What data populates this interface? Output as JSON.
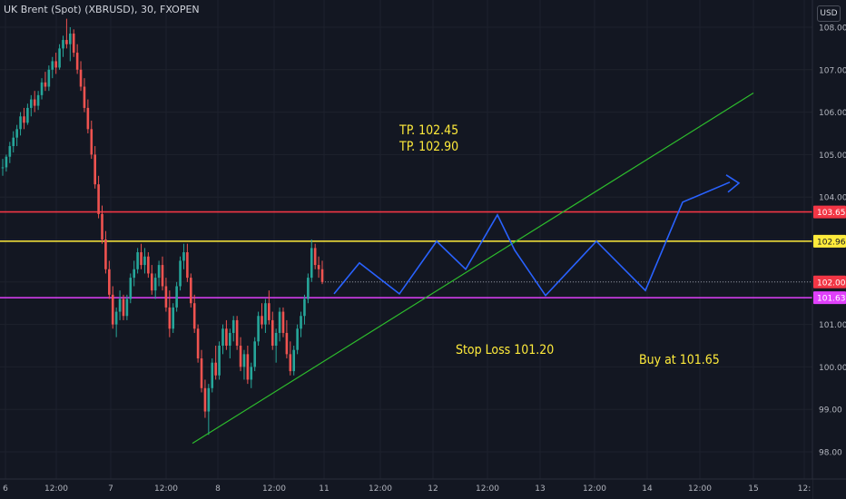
{
  "header": {
    "title": "UK Brent (Spot) (XBRUSD), 30, FXOPEN",
    "currency": "USD"
  },
  "colors": {
    "background": "#131722",
    "up": "#26a69a",
    "down": "#ef5350",
    "resistance": "#f23645",
    "yellow_line": "#ffeb3b",
    "support": "#e040fb",
    "trend": "#2dbd2d",
    "path": "#2962ff",
    "text_annotation": "#ffeb3b"
  },
  "annotations": {
    "tp1": "TP. 102.45",
    "tp2": "TP. 102.90",
    "stop_loss": "Stop Loss 101.20",
    "buy": "Buy at 101.65"
  },
  "chart_data": {
    "type": "candlestick",
    "y_axis": {
      "ticks": [
        "108.00",
        "107.00",
        "106.00",
        "105.00",
        "104.00",
        "103.00",
        "102.00",
        "101.00",
        "100.00",
        "99.00",
        "98.00"
      ],
      "tick_values": [
        108,
        107,
        106,
        105,
        104,
        103,
        102,
        101,
        100,
        99,
        98
      ],
      "range": [
        97.8,
        108.4
      ]
    },
    "x_axis": {
      "ticks": [
        "6",
        "12:00",
        "7",
        "12:00",
        "8",
        "12:00",
        "11",
        "12:00",
        "12",
        "12:00",
        "13",
        "12:00",
        "14",
        "12:00",
        "15",
        "12:"
      ]
    },
    "price_labels": [
      {
        "text": "103.65",
        "value": 103.65,
        "color": "#f23645"
      },
      {
        "text": "102.96",
        "value": 102.96,
        "color": "#ffeb3b"
      },
      {
        "text": "102.00",
        "value": 102.0,
        "color": "#f23645"
      },
      {
        "text": "101.63",
        "value": 101.63,
        "color": "#e040fb"
      }
    ],
    "horizontal_lines": [
      {
        "name": "resistance",
        "value": 103.65
      },
      {
        "name": "yellow-level",
        "value": 102.96
      },
      {
        "name": "support",
        "value": 101.63
      },
      {
        "name": "last-price",
        "value": 102.0
      }
    ],
    "trendline": {
      "from": {
        "bar": "8 (early)",
        "price": 98.2
      },
      "to": {
        "bar": "15 (late)",
        "price": 106.45
      }
    },
    "projected_path": [
      101.72,
      102.45,
      101.72,
      102.96,
      102.3,
      103.58,
      102.75,
      101.68,
      102.96,
      101.8,
      103.88,
      104.35
    ],
    "candles_ohlc": [
      [
        104.7,
        104.9,
        104.5,
        104.7
      ],
      [
        104.7,
        105.0,
        104.6,
        104.95
      ],
      [
        104.95,
        105.3,
        104.8,
        105.2
      ],
      [
        105.2,
        105.55,
        105.05,
        105.4
      ],
      [
        105.4,
        105.7,
        105.2,
        105.6
      ],
      [
        105.6,
        106.0,
        105.45,
        105.9
      ],
      [
        105.9,
        106.1,
        105.6,
        105.75
      ],
      [
        105.75,
        106.2,
        105.7,
        106.1
      ],
      [
        106.1,
        106.4,
        105.9,
        106.3
      ],
      [
        106.3,
        106.5,
        106.0,
        106.15
      ],
      [
        106.15,
        106.5,
        106.05,
        106.4
      ],
      [
        106.4,
        106.8,
        106.3,
        106.7
      ],
      [
        106.7,
        106.95,
        106.5,
        106.6
      ],
      [
        106.6,
        107.1,
        106.5,
        107.0
      ],
      [
        107.0,
        107.3,
        106.8,
        107.2
      ],
      [
        107.2,
        107.4,
        106.9,
        107.05
      ],
      [
        107.05,
        107.6,
        107.0,
        107.5
      ],
      [
        107.5,
        107.8,
        107.3,
        107.7
      ],
      [
        107.7,
        108.2,
        107.5,
        107.6
      ],
      [
        107.6,
        108.0,
        107.2,
        107.85
      ],
      [
        107.85,
        107.95,
        107.3,
        107.4
      ],
      [
        107.4,
        107.6,
        106.9,
        107.0
      ],
      [
        107.0,
        107.2,
        106.5,
        106.6
      ],
      [
        106.6,
        106.8,
        106.0,
        106.1
      ],
      [
        106.1,
        106.3,
        105.5,
        105.6
      ],
      [
        105.6,
        105.8,
        104.9,
        105.0
      ],
      [
        105.0,
        105.2,
        104.2,
        104.3
      ],
      [
        104.3,
        104.5,
        103.5,
        103.6
      ],
      [
        103.6,
        103.8,
        102.9,
        103.0
      ],
      [
        103.0,
        103.2,
        102.2,
        102.3
      ],
      [
        102.3,
        102.5,
        101.6,
        101.7
      ],
      [
        101.7,
        101.9,
        100.9,
        101.0
      ],
      [
        101.0,
        101.4,
        100.7,
        101.3
      ],
      [
        101.3,
        101.8,
        101.1,
        101.6
      ],
      [
        101.6,
        101.7,
        101.1,
        101.2
      ],
      [
        101.2,
        101.7,
        101.1,
        101.6
      ],
      [
        101.6,
        102.2,
        101.5,
        102.1
      ],
      [
        102.1,
        102.5,
        101.9,
        102.3
      ],
      [
        102.3,
        102.8,
        102.2,
        102.7
      ],
      [
        102.7,
        102.9,
        102.3,
        102.4
      ],
      [
        102.4,
        102.8,
        102.2,
        102.6
      ],
      [
        102.6,
        102.7,
        102.1,
        102.2
      ],
      [
        102.2,
        102.4,
        101.7,
        101.8
      ],
      [
        101.8,
        102.2,
        101.6,
        102.1
      ],
      [
        102.1,
        102.5,
        101.9,
        102.4
      ],
      [
        102.4,
        102.6,
        101.8,
        101.9
      ],
      [
        101.9,
        102.1,
        101.3,
        101.4
      ],
      [
        101.4,
        101.8,
        100.7,
        100.9
      ],
      [
        100.9,
        101.5,
        100.8,
        101.4
      ],
      [
        101.4,
        102.0,
        101.3,
        101.9
      ],
      [
        101.9,
        102.6,
        101.8,
        102.5
      ],
      [
        102.5,
        102.9,
        102.3,
        102.7
      ],
      [
        102.7,
        102.9,
        102.0,
        102.1
      ],
      [
        102.1,
        102.2,
        101.4,
        101.5
      ],
      [
        101.5,
        101.7,
        100.8,
        100.9
      ],
      [
        100.9,
        101.0,
        100.1,
        100.2
      ],
      [
        100.2,
        100.4,
        99.4,
        99.5
      ],
      [
        99.5,
        99.7,
        98.8,
        98.95
      ],
      [
        98.95,
        99.6,
        98.4,
        99.5
      ],
      [
        99.5,
        100.2,
        99.4,
        100.1
      ],
      [
        100.1,
        100.5,
        99.7,
        99.8
      ],
      [
        99.8,
        100.6,
        99.7,
        100.5
      ],
      [
        100.5,
        101.0,
        100.3,
        100.9
      ],
      [
        100.9,
        101.1,
        100.4,
        100.5
      ],
      [
        100.5,
        100.9,
        100.2,
        100.8
      ],
      [
        100.8,
        101.2,
        100.6,
        101.1
      ],
      [
        101.1,
        101.2,
        100.4,
        100.5
      ],
      [
        100.5,
        100.7,
        99.9,
        100.0
      ],
      [
        100.0,
        100.4,
        99.7,
        100.3
      ],
      [
        100.3,
        100.5,
        99.6,
        99.7
      ],
      [
        99.7,
        100.1,
        99.5,
        100.0
      ],
      [
        100.0,
        100.7,
        99.9,
        100.6
      ],
      [
        100.6,
        101.3,
        100.5,
        101.2
      ],
      [
        101.2,
        101.5,
        100.9,
        101.0
      ],
      [
        101.0,
        101.6,
        100.8,
        101.5
      ],
      [
        101.5,
        101.8,
        101.0,
        101.1
      ],
      [
        101.1,
        101.3,
        100.4,
        100.5
      ],
      [
        100.5,
        100.9,
        100.1,
        100.8
      ],
      [
        100.8,
        101.4,
        100.6,
        101.3
      ],
      [
        101.3,
        101.4,
        100.7,
        100.8
      ],
      [
        100.8,
        101.1,
        100.2,
        100.3
      ],
      [
        100.3,
        100.6,
        99.8,
        99.9
      ],
      [
        99.9,
        100.5,
        99.8,
        100.4
      ],
      [
        100.4,
        101.0,
        100.3,
        100.9
      ],
      [
        100.9,
        101.3,
        100.7,
        101.2
      ],
      [
        101.2,
        101.7,
        101.0,
        101.6
      ],
      [
        101.6,
        102.2,
        101.5,
        102.1
      ],
      [
        102.1,
        103.0,
        102.0,
        102.8
      ],
      [
        102.8,
        102.9,
        102.3,
        102.4
      ],
      [
        102.4,
        102.6,
        102.1,
        102.3
      ],
      [
        102.3,
        102.5,
        101.95,
        102.0
      ]
    ]
  }
}
